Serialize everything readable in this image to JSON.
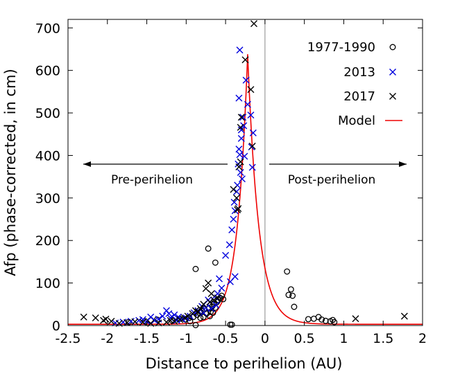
{
  "chart_data": {
    "type": "scatter",
    "title": "",
    "xlabel": "Distance to perihelion (AU)",
    "ylabel": "Afp (phase-corrected, in cm)",
    "xlim": [
      -2.5,
      2
    ],
    "ylim": [
      0,
      720
    ],
    "xticks": [
      -2.5,
      -2,
      -1.5,
      -1,
      -0.5,
      0,
      0.5,
      1,
      1.5,
      2
    ],
    "xtick_labels": [
      "-2.5",
      "-2",
      "-1.5",
      "-1",
      "-0.5",
      "0",
      "0.5",
      "1",
      "1.5",
      "2"
    ],
    "yticks": [
      0,
      100,
      200,
      300,
      400,
      500,
      600,
      700
    ],
    "ytick_labels": [
      "0",
      "100",
      "200",
      "300",
      "400",
      "500",
      "600",
      "700"
    ],
    "legend_position": "top-right",
    "annotations": {
      "pre": "Pre-perihelion",
      "post": "Post-perihelion"
    },
    "series": [
      {
        "name": "1977-1990",
        "marker": "circle",
        "color": "#000000",
        "points": [
          [
            -0.88,
            133
          ],
          [
            -0.72,
            181
          ],
          [
            -0.63,
            148
          ],
          [
            -0.88,
            1
          ],
          [
            -0.44,
            2
          ],
          [
            -0.42,
            2
          ],
          [
            -1.73,
            8
          ],
          [
            -1.52,
            10
          ],
          [
            -1.45,
            12
          ],
          [
            -1.37,
            14
          ],
          [
            -1.18,
            12
          ],
          [
            -1.08,
            16
          ],
          [
            -1.01,
            14
          ],
          [
            -0.96,
            18
          ],
          [
            -0.91,
            20
          ],
          [
            -0.86,
            25
          ],
          [
            -0.83,
            30
          ],
          [
            -0.8,
            34
          ],
          [
            -0.77,
            38
          ],
          [
            -0.74,
            28
          ],
          [
            -0.71,
            40
          ],
          [
            -0.69,
            32
          ],
          [
            -0.67,
            45
          ],
          [
            -0.65,
            50
          ],
          [
            -0.63,
            42
          ],
          [
            -0.61,
            55
          ],
          [
            -0.59,
            60
          ],
          [
            -0.57,
            65
          ],
          [
            -0.55,
            70
          ],
          [
            -0.53,
            62
          ],
          [
            -0.66,
            30
          ],
          [
            -0.7,
            22
          ],
          [
            -0.78,
            20
          ],
          [
            -0.82,
            18
          ],
          [
            -0.95,
            10
          ],
          [
            0.28,
            127
          ],
          [
            0.3,
            72
          ],
          [
            0.33,
            85
          ],
          [
            0.35,
            70
          ],
          [
            0.37,
            44
          ],
          [
            0.55,
            15
          ],
          [
            0.68,
            20
          ],
          [
            0.72,
            14
          ],
          [
            0.77,
            11
          ],
          [
            0.83,
            10
          ],
          [
            0.86,
            13
          ],
          [
            0.88,
            8
          ],
          [
            0.62,
            16
          ]
        ]
      },
      {
        "name": "2013",
        "marker": "x",
        "color": "#0000dd",
        "points": [
          [
            -0.32,
            648
          ],
          [
            -0.24,
            577
          ],
          [
            -0.28,
            490
          ],
          [
            -0.18,
            495
          ],
          [
            -0.3,
            460
          ],
          [
            -0.15,
            453
          ],
          [
            -0.33,
            415
          ],
          [
            -0.32,
            402
          ],
          [
            -0.26,
            398
          ],
          [
            -0.17,
            420
          ],
          [
            -0.34,
            380
          ],
          [
            -0.36,
            315
          ],
          [
            -0.31,
            360
          ],
          [
            -0.29,
            345
          ],
          [
            -0.38,
            270
          ],
          [
            -0.4,
            250
          ],
          [
            -0.42,
            225
          ],
          [
            -0.45,
            190
          ],
          [
            -0.16,
            372
          ],
          [
            -0.5,
            165
          ],
          [
            -0.38,
            115
          ],
          [
            -0.44,
            103
          ],
          [
            -0.58,
            110
          ],
          [
            -0.6,
            75
          ],
          [
            -0.64,
            68
          ],
          [
            -0.7,
            55
          ],
          [
            -0.75,
            42
          ],
          [
            -0.8,
            45
          ],
          [
            -0.85,
            35
          ],
          [
            -0.9,
            30
          ],
          [
            -0.95,
            22
          ],
          [
            -1.0,
            18
          ],
          [
            -1.05,
            15
          ],
          [
            -1.1,
            20
          ],
          [
            -1.15,
            25
          ],
          [
            -1.2,
            18
          ],
          [
            -1.25,
            35
          ],
          [
            -1.3,
            22
          ],
          [
            -1.35,
            15
          ],
          [
            -1.4,
            12
          ],
          [
            -1.45,
            20
          ],
          [
            -1.5,
            10
          ],
          [
            -1.55,
            14
          ],
          [
            -1.6,
            12
          ],
          [
            -1.7,
            10
          ],
          [
            -1.8,
            8
          ],
          [
            -1.9,
            6
          ],
          [
            -0.33,
            535
          ],
          [
            -0.22,
            520
          ],
          [
            -0.27,
            470
          ],
          [
            -0.3,
            440
          ],
          [
            -0.35,
            330
          ],
          [
            -0.39,
            290
          ],
          [
            -0.55,
            88
          ],
          [
            -0.68,
            40
          ],
          [
            -0.78,
            30
          ],
          [
            -1.12,
            12
          ],
          [
            -1.22,
            28
          ],
          [
            -0.72,
            60
          ],
          [
            -0.62,
            48
          ]
        ]
      },
      {
        "name": "2017",
        "marker": "x",
        "color": "#000000",
        "points": [
          [
            -0.14,
            710
          ],
          [
            -0.25,
            625
          ],
          [
            -0.18,
            555
          ],
          [
            -0.3,
            490
          ],
          [
            -0.31,
            466
          ],
          [
            -0.16,
            422
          ],
          [
            -0.31,
            385
          ],
          [
            -0.33,
            373
          ],
          [
            -0.36,
            300
          ],
          [
            -0.35,
            272
          ],
          [
            -0.34,
            275
          ],
          [
            -0.72,
            100
          ],
          [
            -0.75,
            87
          ],
          [
            -0.68,
            75
          ],
          [
            -0.65,
            60
          ],
          [
            -0.7,
            55
          ],
          [
            -0.78,
            50
          ],
          [
            -0.82,
            40
          ],
          [
            -0.88,
            35
          ],
          [
            -0.92,
            28
          ],
          [
            -0.98,
            22
          ],
          [
            -1.02,
            18
          ],
          [
            -1.08,
            14
          ],
          [
            -1.15,
            10
          ],
          [
            -1.25,
            8
          ],
          [
            -1.35,
            6
          ],
          [
            -1.45,
            5
          ],
          [
            -1.55,
            8
          ],
          [
            -1.65,
            9
          ],
          [
            -1.75,
            7
          ],
          [
            -1.85,
            5
          ],
          [
            -1.95,
            10
          ],
          [
            -2.02,
            15
          ],
          [
            -2.05,
            12
          ],
          [
            -2.15,
            18
          ],
          [
            -2.3,
            20
          ],
          [
            -0.4,
            320
          ],
          [
            -0.6,
            65
          ],
          [
            -0.85,
            32
          ],
          [
            -1.2,
            12
          ],
          [
            1.15,
            16
          ],
          [
            1.77,
            22
          ]
        ]
      },
      {
        "name": "Model",
        "type": "line",
        "color": "#ee0000",
        "params": {
          "peak_x": -0.22,
          "peak_y": 638,
          "base": 3,
          "rise_scale": 0.13,
          "decay_scale": 0.14
        }
      }
    ]
  }
}
